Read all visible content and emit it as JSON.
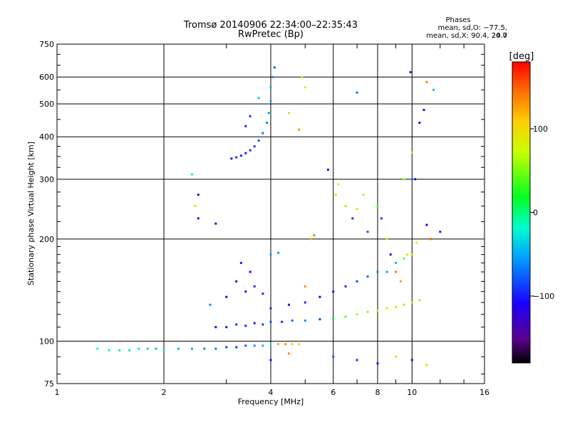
{
  "header": {
    "title_line1": "Tromsø 20140906 22:34:00–22:35:43",
    "title_line2": "RwPretec (Bp)"
  },
  "phase_box": {
    "title": "Phases",
    "line1": "mean, sd,O: −77.5, 20.0",
    "line2": "mean, sd,X:  90.4, 24.7"
  },
  "colorbar": {
    "label": "[deg]",
    "ticks": [
      {
        "value": 100,
        "label": "100"
      },
      {
        "value": 0,
        "label": "0"
      },
      {
        "value": -100,
        "label": "−100"
      }
    ],
    "range": [
      -180,
      180
    ]
  },
  "chart_data": {
    "type": "scatter",
    "title": "Tromsø 20140906 22:34:00–22:35:43",
    "subtitle": "RwPretec (Bp)",
    "xlabel": "Frequency [MHz]",
    "ylabel": "Stationary phase Virtual Height [km]",
    "x_scale": "log",
    "y_scale": "log",
    "xlim": [
      1,
      16
    ],
    "ylim": [
      75,
      750
    ],
    "x_ticks": [
      1,
      2,
      4,
      6,
      8,
      10,
      16
    ],
    "y_ticks": [
      75,
      100,
      200,
      300,
      400,
      500,
      600,
      750
    ],
    "grid": true,
    "color_scale": "rainbow phase (deg)",
    "series": [
      {
        "name": "o-mode trace",
        "points": [
          [
            1.3,
            95,
            -20
          ],
          [
            1.4,
            94,
            -15
          ],
          [
            1.5,
            94,
            -25
          ],
          [
            1.6,
            94,
            -30
          ],
          [
            1.7,
            95,
            -25
          ],
          [
            1.8,
            95,
            -35
          ],
          [
            1.9,
            95,
            -40
          ],
          [
            2.0,
            94,
            -30
          ],
          [
            2.2,
            95,
            -45
          ],
          [
            2.4,
            95,
            -50
          ],
          [
            2.6,
            95,
            -60
          ],
          [
            2.8,
            95,
            -70
          ],
          [
            3.0,
            96,
            -85
          ],
          [
            3.2,
            96,
            -95
          ],
          [
            3.4,
            97,
            -80
          ],
          [
            3.6,
            97,
            -60
          ],
          [
            3.8,
            97,
            -40
          ],
          [
            4.0,
            98,
            -20
          ],
          [
            4.2,
            98,
            120
          ],
          [
            4.4,
            98,
            130
          ],
          [
            4.6,
            98,
            110
          ],
          [
            4.8,
            98,
            95
          ]
        ]
      },
      {
        "name": "F-region trace",
        "points": [
          [
            2.8,
            110,
            -110
          ],
          [
            3.0,
            110,
            -100
          ],
          [
            3.2,
            112,
            -90
          ],
          [
            3.4,
            111,
            -95
          ],
          [
            3.6,
            113,
            -100
          ],
          [
            3.8,
            112,
            -90
          ],
          [
            4.0,
            114,
            -80
          ],
          [
            4.3,
            114,
            -95
          ],
          [
            4.6,
            115,
            -70
          ],
          [
            5.0,
            115,
            -60
          ],
          [
            5.5,
            116,
            -85
          ],
          [
            6.0,
            117,
            20
          ],
          [
            6.5,
            118,
            50
          ],
          [
            7.0,
            120,
            60
          ],
          [
            7.5,
            122,
            55
          ],
          [
            8.0,
            123,
            70
          ],
          [
            8.5,
            125,
            80
          ],
          [
            9.0,
            126,
            90
          ],
          [
            9.5,
            128,
            100
          ],
          [
            10.0,
            130,
            95
          ],
          [
            10.5,
            132,
            110
          ],
          [
            2.7,
            128,
            -60
          ],
          [
            3.0,
            135,
            -110
          ],
          [
            3.2,
            150,
            -100
          ],
          [
            3.3,
            170,
            -95
          ],
          [
            3.5,
            160,
            -105
          ],
          [
            3.4,
            140,
            -100
          ],
          [
            3.6,
            145,
            -90
          ],
          [
            3.8,
            138,
            -95
          ],
          [
            4.0,
            180,
            -50
          ],
          [
            4.2,
            182,
            -55
          ],
          [
            4.0,
            125,
            -90
          ],
          [
            4.5,
            128,
            -100
          ],
          [
            5.0,
            130,
            -95
          ],
          [
            5.5,
            135,
            -110
          ],
          [
            6.0,
            140,
            -100
          ],
          [
            6.5,
            145,
            -90
          ],
          [
            7.0,
            150,
            -80
          ],
          [
            7.5,
            155,
            -75
          ],
          [
            8.0,
            160,
            -60
          ],
          [
            8.5,
            160,
            -50
          ],
          [
            9.0,
            170,
            -40
          ],
          [
            9.5,
            175,
            50
          ],
          [
            10.0,
            180,
            60
          ],
          [
            10.3,
            195,
            80
          ]
        ]
      },
      {
        "name": "high-altitude trace",
        "points": [
          [
            3.1,
            345,
            -100
          ],
          [
            3.2,
            348,
            -90
          ],
          [
            3.3,
            352,
            -95
          ],
          [
            3.4,
            358,
            -100
          ],
          [
            3.5,
            365,
            -90
          ],
          [
            3.6,
            375,
            -85
          ],
          [
            3.7,
            390,
            -80
          ],
          [
            3.8,
            410,
            -70
          ],
          [
            3.9,
            440,
            -60
          ],
          [
            3.95,
            470,
            -55
          ],
          [
            4.0,
            510,
            -50
          ],
          [
            4.0,
            560,
            -40
          ],
          [
            4.05,
            600,
            -60
          ],
          [
            4.1,
            640,
            -80
          ],
          [
            3.7,
            520,
            -40
          ],
          [
            3.5,
            460,
            -90
          ],
          [
            3.4,
            430,
            -95
          ]
        ]
      },
      {
        "name": "scattered echoes",
        "points": [
          [
            2.4,
            310,
            -20
          ],
          [
            2.5,
            270,
            -120
          ],
          [
            2.45,
            250,
            90
          ],
          [
            2.5,
            230,
            -110
          ],
          [
            2.8,
            222,
            -100
          ],
          [
            4.5,
            470,
            100
          ],
          [
            4.8,
            420,
            130
          ],
          [
            4.9,
            600,
            95
          ],
          [
            5.0,
            560,
            80
          ],
          [
            5.2,
            200,
            120
          ],
          [
            5.3,
            205,
            140
          ],
          [
            5.0,
            145,
            130
          ],
          [
            5.8,
            320,
            -100
          ],
          [
            6.1,
            270,
            100
          ],
          [
            6.2,
            290,
            80
          ],
          [
            6.5,
            250,
            60
          ],
          [
            6.8,
            230,
            -90
          ],
          [
            7.0,
            245,
            100
          ],
          [
            7.0,
            540,
            -70
          ],
          [
            7.3,
            270,
            90
          ],
          [
            7.5,
            210,
            -80
          ],
          [
            8.0,
            250,
            40
          ],
          [
            8.2,
            230,
            -90
          ],
          [
            8.5,
            200,
            100
          ],
          [
            8.7,
            180,
            -110
          ],
          [
            9.0,
            160,
            140
          ],
          [
            9.3,
            150,
            120
          ],
          [
            9.5,
            300,
            60
          ],
          [
            9.7,
            180,
            100
          ],
          [
            9.9,
            620,
            -130
          ],
          [
            10.0,
            360,
            90
          ],
          [
            10.2,
            300,
            -100
          ],
          [
            10.5,
            440,
            -120
          ],
          [
            10.8,
            480,
            -140
          ],
          [
            11.0,
            580,
            140
          ],
          [
            11.5,
            550,
            -40
          ],
          [
            11.0,
            220,
            -110
          ],
          [
            11.3,
            200,
            150
          ],
          [
            12.0,
            210,
            -100
          ],
          [
            6.0,
            90,
            -80
          ],
          [
            7.0,
            88,
            -90
          ],
          [
            8.0,
            86,
            -100
          ],
          [
            9.0,
            90,
            60
          ],
          [
            10.0,
            88,
            -100
          ],
          [
            11.0,
            85,
            100
          ],
          [
            4.0,
            88,
            -100
          ],
          [
            4.5,
            92,
            130
          ]
        ]
      }
    ]
  }
}
